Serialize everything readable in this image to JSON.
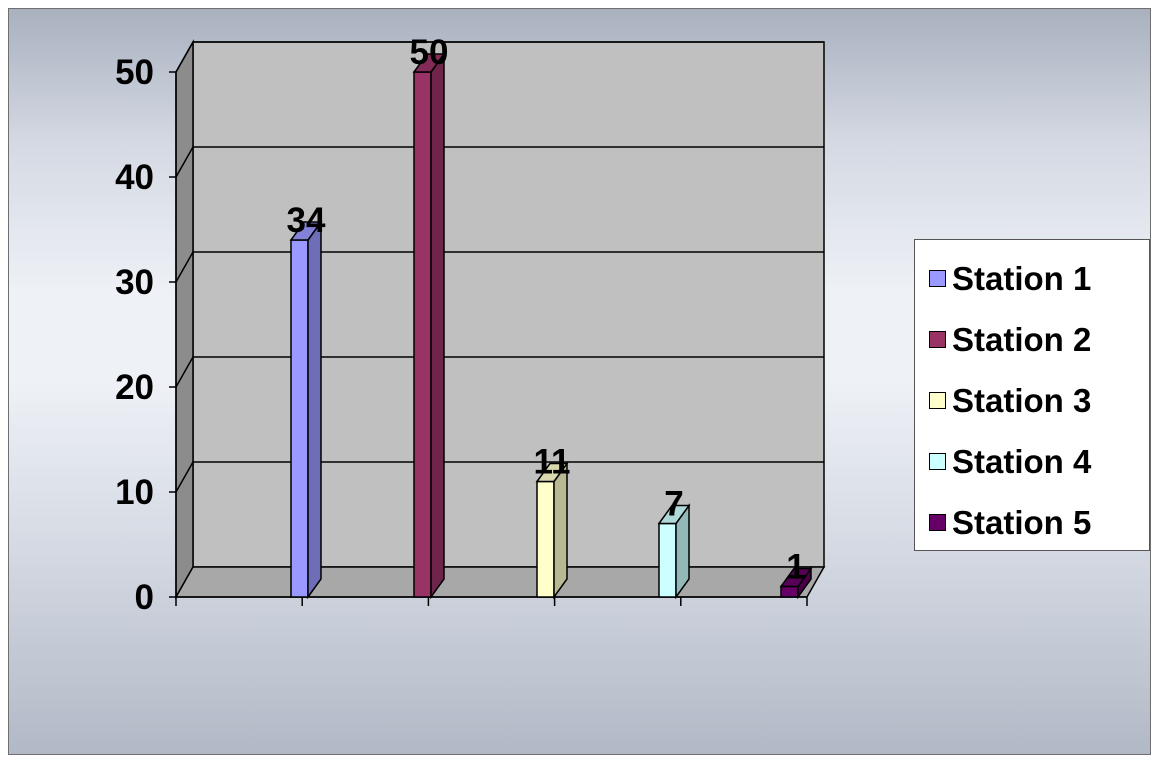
{
  "chart_data": {
    "type": "bar",
    "title": "",
    "xlabel": "",
    "ylabel": "",
    "ylim": [
      0,
      50
    ],
    "yticks": [
      0,
      10,
      20,
      30,
      40,
      50
    ],
    "grid": true,
    "three_d": true,
    "legend_position": "right",
    "data_labels": true,
    "series": [
      {
        "name": "Station 1",
        "values": [
          34
        ],
        "color": "#9999ff"
      },
      {
        "name": "Station 2",
        "values": [
          50
        ],
        "color": "#993366"
      },
      {
        "name": "Station 3",
        "values": [
          11
        ],
        "color": "#ffffcc"
      },
      {
        "name": "Station 4",
        "values": [
          7
        ],
        "color": "#ccffff"
      },
      {
        "name": "Station 5",
        "values": [
          1
        ],
        "color": "#660066"
      }
    ],
    "colors": {
      "wall": "#c0c0c0",
      "floor": "#a8a8a8",
      "side_wall": "#8c8c8c",
      "background": "#e8ecf2"
    }
  }
}
